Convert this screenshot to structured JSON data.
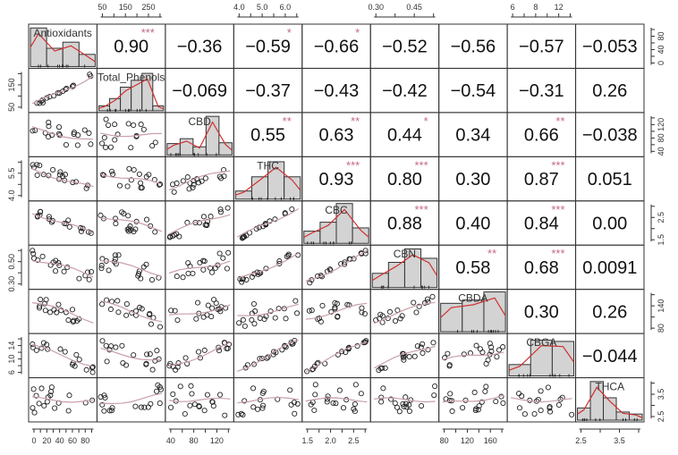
{
  "chart_data": {
    "type": "scatter-matrix",
    "title": "",
    "variables": [
      "Antioxidants",
      "Total_Phenols",
      "CBD",
      "THC",
      "CBC",
      "CBN",
      "CBDA",
      "CBGA",
      "THCA"
    ],
    "correlations": [
      [
        null,
        "0.90",
        "-0.36",
        "-0.59",
        "-0.66",
        "-0.52",
        "-0.56",
        "-0.57",
        "-0.053"
      ],
      [
        null,
        null,
        "-0.069",
        "-0.37",
        "-0.43",
        "-0.42",
        "-0.54",
        "-0.31",
        "0.26"
      ],
      [
        null,
        null,
        null,
        "0.55",
        "0.63",
        "0.44",
        "0.34",
        "0.66",
        "-0.038"
      ],
      [
        null,
        null,
        null,
        null,
        "0.93",
        "0.80",
        "0.30",
        "0.87",
        "0.051"
      ],
      [
        null,
        null,
        null,
        null,
        null,
        "0.88",
        "0.40",
        "0.84",
        "0.00"
      ],
      [
        null,
        null,
        null,
        null,
        null,
        null,
        "0.58",
        "0.68",
        "0.0091"
      ],
      [
        null,
        null,
        null,
        null,
        null,
        null,
        null,
        "0.30",
        "0.26"
      ],
      [
        null,
        null,
        null,
        null,
        null,
        null,
        null,
        null,
        "-0.044"
      ]
    ],
    "significance": [
      [
        null,
        "***",
        "",
        "*",
        "*",
        "",
        "",
        "",
        ""
      ],
      [
        null,
        null,
        "",
        "",
        "",
        "",
        "",
        "",
        ""
      ],
      [
        null,
        null,
        null,
        "**",
        "**",
        "*",
        "",
        "**",
        ""
      ],
      [
        null,
        null,
        null,
        null,
        "***",
        "***",
        "",
        "***",
        ""
      ],
      [
        null,
        null,
        null,
        null,
        null,
        "***",
        "",
        "***",
        ""
      ],
      [
        null,
        null,
        null,
        null,
        null,
        null,
        "**",
        "***",
        ""
      ],
      [
        null,
        null,
        null,
        null,
        null,
        null,
        null,
        "",
        ""
      ],
      [
        null,
        null,
        null,
        null,
        null,
        null,
        null,
        null,
        ""
      ]
    ],
    "histograms": [
      [
        0.95,
        0.45,
        0.6,
        0.3
      ],
      [
        0.12,
        0.3,
        0.58,
        0.75,
        0.92,
        0.12
      ],
      [
        0.28,
        0.4,
        0.2,
        0.95,
        0.3
      ],
      [
        0.2,
        0.55,
        0.92,
        0.55
      ],
      [
        0.3,
        0.52,
        0.98,
        0.38
      ],
      [
        0.35,
        0.62,
        0.95,
        0.72
      ],
      [
        0.7,
        0.78,
        0.98
      ],
      [
        0.28,
        0.88,
        0.85
      ],
      [
        0.3,
        0.95,
        0.55,
        0.2,
        0.15
      ]
    ],
    "axis_ticks": {
      "top": [
        {
          "col": 1,
          "labels": [
            "50",
            "150",
            "250"
          ]
        },
        {
          "col": 3,
          "labels": [
            "4.0",
            "5.0",
            "6.0"
          ]
        },
        {
          "col": 5,
          "labels": [
            "0.30",
            "0.45"
          ]
        },
        {
          "col": 7,
          "labels": [
            "6",
            "8",
            "12"
          ]
        }
      ],
      "bottom": [
        {
          "col": 0,
          "labels": [
            "0",
            "20",
            "40",
            "60",
            "80"
          ]
        },
        {
          "col": 2,
          "labels": [
            "40",
            "80",
            "120"
          ]
        },
        {
          "col": 4,
          "labels": [
            "1.5",
            "2.0",
            "2.5"
          ]
        },
        {
          "col": 6,
          "labels": [
            "80",
            "120",
            "160"
          ]
        },
        {
          "col": 8,
          "labels": [
            "2.5",
            "3.5"
          ]
        }
      ],
      "left": [
        {
          "row": 1,
          "labels": [
            "50",
            "150"
          ]
        },
        {
          "row": 3,
          "labels": [
            "4.0",
            "5.5"
          ]
        },
        {
          "row": 5,
          "labels": [
            "0.30",
            "0.50"
          ]
        },
        {
          "row": 7,
          "labels": [
            "6",
            "10",
            "14"
          ]
        }
      ],
      "right": [
        {
          "row": 0,
          "labels": [
            "0",
            "40",
            "80"
          ]
        },
        {
          "row": 2,
          "labels": [
            "40",
            "80",
            "120"
          ]
        },
        {
          "row": 4,
          "labels": [
            "1.5",
            "2.5"
          ]
        },
        {
          "row": 6,
          "labels": [
            "80",
            "140"
          ]
        },
        {
          "row": 8,
          "labels": [
            "2.5",
            "3.5"
          ]
        }
      ]
    },
    "colors": {
      "smooth_line": "#c9a0a8",
      "density_line": "#d03030",
      "histogram_fill": "#d3d3d3",
      "stars": "#c36a85",
      "grid": "#333333"
    },
    "legend": null
  }
}
